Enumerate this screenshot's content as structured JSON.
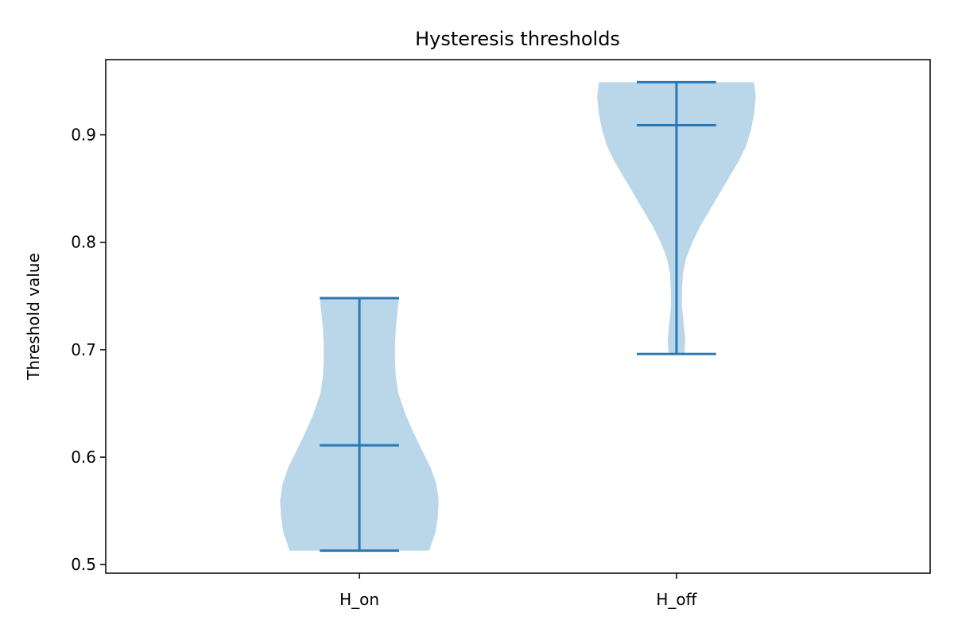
{
  "chart_data": {
    "type": "violin",
    "title": "Hysteresis thresholds",
    "xlabel": "",
    "ylabel": "Threshold value",
    "categories": [
      "H_on",
      "H_off"
    ],
    "ylim": [
      0.492,
      0.97
    ],
    "yticks": [
      0.5,
      0.6,
      0.7,
      0.8,
      0.9
    ],
    "ytick_labels": [
      "0.5",
      "0.6",
      "0.7",
      "0.8",
      "0.9"
    ],
    "grid": false,
    "colors": {
      "body": "#bad6e9",
      "stat_line": "#2878b4",
      "frame": "#000000"
    },
    "series": [
      {
        "category": "H_on",
        "min": 0.513,
        "max": 0.748,
        "median": 0.611,
        "density": [
          [
            0.513,
            0.88
          ],
          [
            0.53,
            0.96
          ],
          [
            0.545,
            0.99
          ],
          [
            0.56,
            1.0
          ],
          [
            0.575,
            0.97
          ],
          [
            0.59,
            0.9
          ],
          [
            0.605,
            0.8
          ],
          [
            0.62,
            0.7
          ],
          [
            0.64,
            0.58
          ],
          [
            0.66,
            0.49
          ],
          [
            0.675,
            0.46
          ],
          [
            0.69,
            0.45
          ],
          [
            0.705,
            0.45
          ],
          [
            0.72,
            0.46
          ],
          [
            0.735,
            0.48
          ],
          [
            0.748,
            0.5
          ]
        ]
      },
      {
        "category": "H_off",
        "min": 0.696,
        "max": 0.949,
        "median": 0.909,
        "density": [
          [
            0.696,
            0.1
          ],
          [
            0.71,
            0.11
          ],
          [
            0.725,
            0.09
          ],
          [
            0.74,
            0.07
          ],
          [
            0.755,
            0.07
          ],
          [
            0.77,
            0.08
          ],
          [
            0.785,
            0.12
          ],
          [
            0.8,
            0.2
          ],
          [
            0.815,
            0.3
          ],
          [
            0.83,
            0.42
          ],
          [
            0.845,
            0.54
          ],
          [
            0.86,
            0.66
          ],
          [
            0.875,
            0.78
          ],
          [
            0.89,
            0.88
          ],
          [
            0.905,
            0.94
          ],
          [
            0.92,
            0.98
          ],
          [
            0.935,
            1.0
          ],
          [
            0.949,
            0.98
          ]
        ]
      }
    ]
  }
}
